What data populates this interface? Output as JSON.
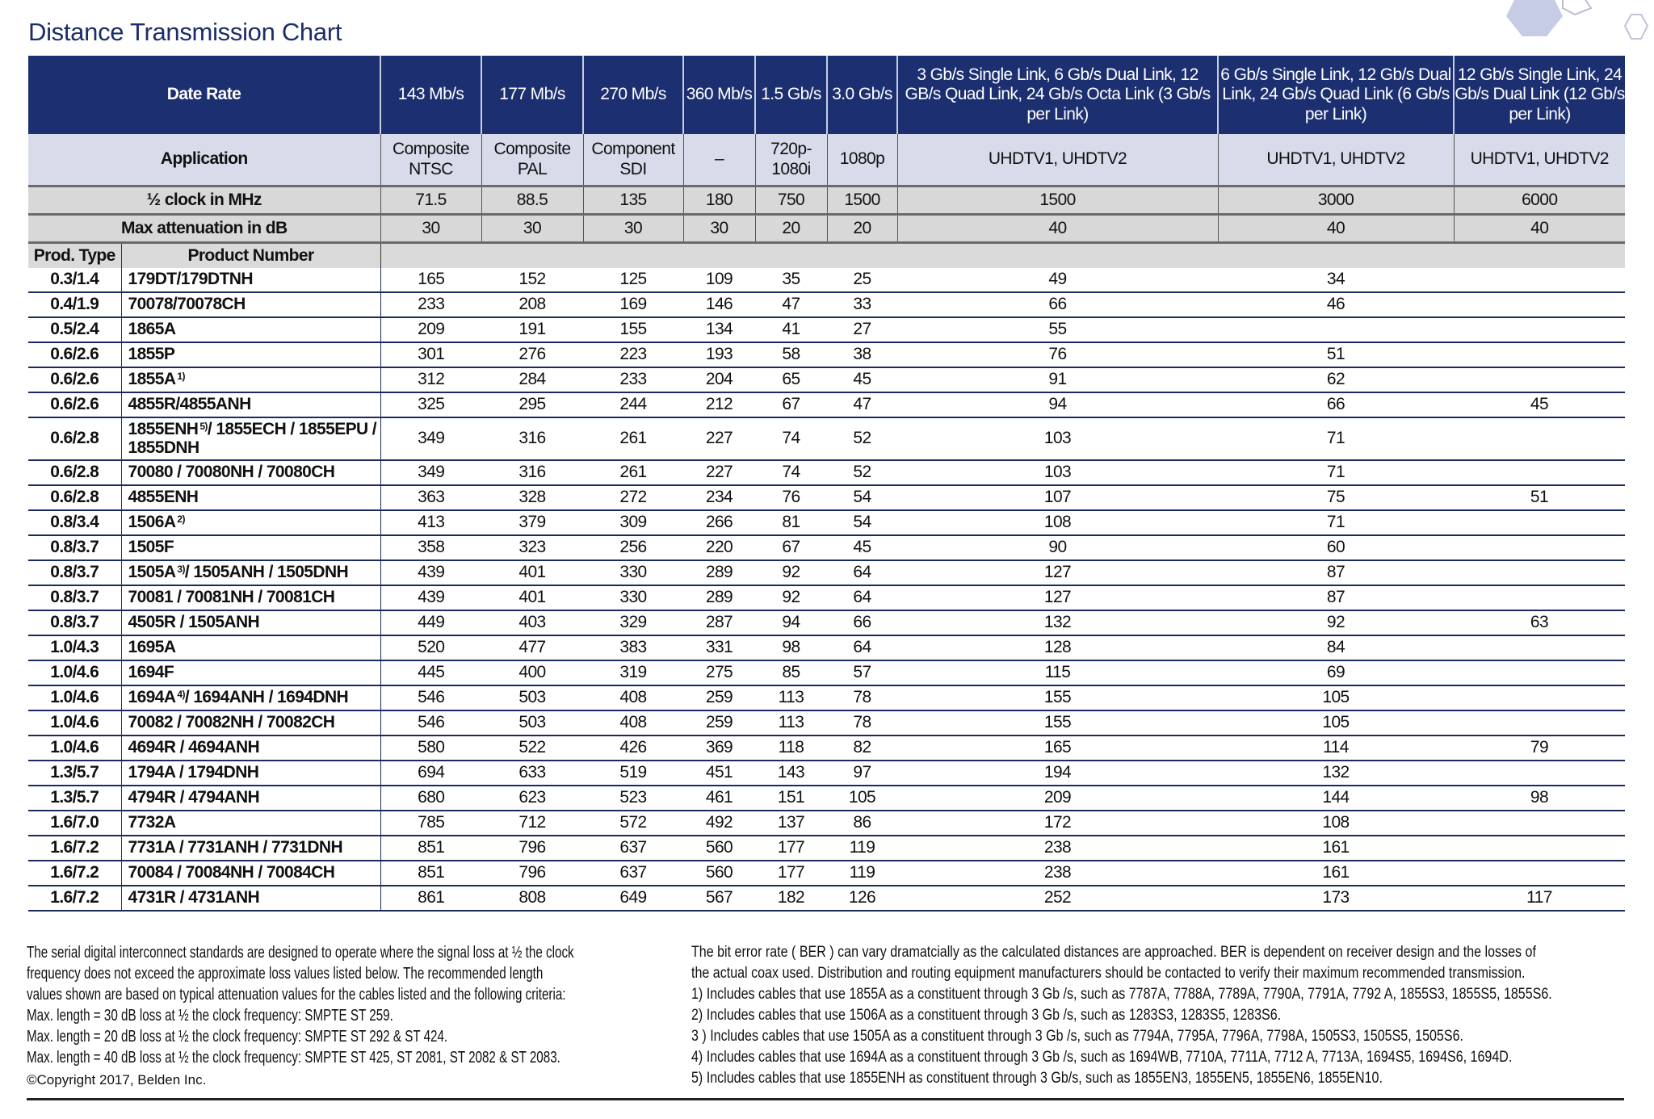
{
  "title": "Distance Transmission Chart",
  "colors": {
    "header_bg": "#1c2f70",
    "application_bg": "#d7dbea",
    "gray_rows_bg": "#d8d8d8",
    "row_rule": "#1b2a5e",
    "title": "#1b2c6b"
  },
  "header": {
    "date_rate_label": "Date Rate",
    "rates": [
      "143 Mb/s",
      "177 Mb/s",
      "270 Mb/s",
      "360 Mb/s",
      "1.5 Gb/s",
      "3.0 Gb/s",
      "3 Gb/s Single Link, 6 Gb/s Dual Link, 12 GB/s Quad Link, 24 Gb/s Octa Link (3 Gb/s per Link)",
      "6 Gb/s Single Link, 12 Gb/s Dual Link, 24 Gb/s Quad Link (6 Gb/s per Link)",
      "12 Gb/s Single Link, 24 Gb/s Dual Link (12 Gb/s per Link)"
    ],
    "application_label": "Application",
    "applications": [
      "Composite NTSC",
      "Composite PAL",
      "Component SDI",
      "–",
      "720p-1080i",
      "1080p",
      "UHDTV1, UHDTV2",
      "UHDTV1, UHDTV2",
      "UHDTV1, UHDTV2"
    ],
    "clock_label": "½ clock in MHz",
    "clocks": [
      "71.5",
      "88.5",
      "135",
      "180",
      "750",
      "1500",
      "1500",
      "3000",
      "6000"
    ],
    "attenuation_label": "Max attenuation in dB",
    "attenuations": [
      "30",
      "30",
      "30",
      "30",
      "20",
      "20",
      "40",
      "40",
      "40"
    ],
    "prod_type_label": "Prod. Type",
    "product_number_label": "Product Number"
  },
  "rows": [
    {
      "type": "0.3/1.4",
      "product": [
        "179DT/179DTNH"
      ],
      "values": [
        "165",
        "152",
        "125",
        "109",
        "35",
        "25",
        "49",
        "34",
        ""
      ]
    },
    {
      "type": "0.4/1.9",
      "product": [
        "70078/70078CH"
      ],
      "values": [
        "233",
        "208",
        "169",
        "146",
        "47",
        "33",
        "66",
        "46",
        ""
      ]
    },
    {
      "type": "0.5/2.4",
      "product": [
        "1865A"
      ],
      "values": [
        "209",
        "191",
        "155",
        "134",
        "41",
        "27",
        "55",
        "",
        ""
      ]
    },
    {
      "type": "0.6/2.6",
      "product": [
        "1855P"
      ],
      "values": [
        "301",
        "276",
        "223",
        "193",
        "58",
        "38",
        "76",
        "51",
        ""
      ]
    },
    {
      "type": "0.6/2.6",
      "product": [
        "1855A",
        "1)",
        ""
      ],
      "values": [
        "312",
        "284",
        "233",
        "204",
        "65",
        "45",
        "91",
        "62",
        ""
      ]
    },
    {
      "type": "0.6/2.6",
      "product": [
        "4855R/4855ANH"
      ],
      "values": [
        "325",
        "295",
        "244",
        "212",
        "67",
        "47",
        "94",
        "66",
        "45"
      ]
    },
    {
      "type": "0.6/2.8",
      "product": [
        "1855ENH",
        "5)",
        "/ 1855ECH / 1855EPU / 1855DNH"
      ],
      "tall": true,
      "values": [
        "349",
        "316",
        "261",
        "227",
        "74",
        "52",
        "103",
        "71",
        ""
      ]
    },
    {
      "type": "0.6/2.8",
      "product": [
        "70080 / 70080NH / 70080CH"
      ],
      "values": [
        "349",
        "316",
        "261",
        "227",
        "74",
        "52",
        "103",
        "71",
        ""
      ]
    },
    {
      "type": "0.6/2.8",
      "product": [
        "4855ENH"
      ],
      "values": [
        "363",
        "328",
        "272",
        "234",
        "76",
        "54",
        "107",
        "75",
        "51"
      ]
    },
    {
      "type": "0.8/3.4",
      "product": [
        "1506A",
        "2)",
        ""
      ],
      "values": [
        "413",
        "379",
        "309",
        "266",
        "81",
        "54",
        "108",
        "71",
        ""
      ]
    },
    {
      "type": "0.8/3.7",
      "product": [
        "1505F"
      ],
      "values": [
        "358",
        "323",
        "256",
        "220",
        "67",
        "45",
        "90",
        "60",
        ""
      ]
    },
    {
      "type": "0.8/3.7",
      "product": [
        "1505A",
        "3)",
        "/ 1505ANH / 1505DNH"
      ],
      "values": [
        "439",
        "401",
        "330",
        "289",
        "92",
        "64",
        "127",
        "87",
        ""
      ]
    },
    {
      "type": "0.8/3.7",
      "product": [
        "70081 / 70081NH / 70081CH"
      ],
      "values": [
        "439",
        "401",
        "330",
        "289",
        "92",
        "64",
        "127",
        "87",
        ""
      ]
    },
    {
      "type": "0.8/3.7",
      "product": [
        "4505R / 1505ANH"
      ],
      "values": [
        "449",
        "403",
        "329",
        "287",
        "94",
        "66",
        "132",
        "92",
        "63"
      ]
    },
    {
      "type": "1.0/4.3",
      "product": [
        "1695A"
      ],
      "values": [
        "520",
        "477",
        "383",
        "331",
        "98",
        "64",
        "128",
        "84",
        ""
      ]
    },
    {
      "type": "1.0/4.6",
      "product": [
        "1694F"
      ],
      "values": [
        "445",
        "400",
        "319",
        "275",
        "85",
        "57",
        "115",
        "69",
        ""
      ]
    },
    {
      "type": "1.0/4.6",
      "product": [
        "1694A",
        "4)",
        "/ 1694ANH / 1694DNH"
      ],
      "values": [
        "546",
        "503",
        "408",
        "259",
        "113",
        "78",
        "155",
        "105",
        ""
      ]
    },
    {
      "type": "1.0/4.6",
      "product": [
        "70082 / 70082NH / 70082CH"
      ],
      "values": [
        "546",
        "503",
        "408",
        "259",
        "113",
        "78",
        "155",
        "105",
        ""
      ]
    },
    {
      "type": "1.0/4.6",
      "product": [
        "4694R / 4694ANH"
      ],
      "values": [
        "580",
        "522",
        "426",
        "369",
        "118",
        "82",
        "165",
        "114",
        "79"
      ]
    },
    {
      "type": "1.3/5.7",
      "product": [
        "1794A / 1794DNH"
      ],
      "values": [
        "694",
        "633",
        "519",
        "451",
        "143",
        "97",
        "194",
        "132",
        ""
      ]
    },
    {
      "type": "1.3/5.7",
      "product": [
        "4794R / 4794ANH"
      ],
      "values": [
        "680",
        "623",
        "523",
        "461",
        "151",
        "105",
        "209",
        "144",
        "98"
      ]
    },
    {
      "type": "1.6/7.0",
      "product": [
        "7732A"
      ],
      "values": [
        "785",
        "712",
        "572",
        "492",
        "137",
        "86",
        "172",
        "108",
        ""
      ]
    },
    {
      "type": "1.6/7.2",
      "product": [
        "7731A / 7731ANH / 7731DNH"
      ],
      "values": [
        "851",
        "796",
        "637",
        "560",
        "177",
        "119",
        "238",
        "161",
        ""
      ]
    },
    {
      "type": "1.6/7.2",
      "product": [
        "70084 / 70084NH / 70084CH"
      ],
      "values": [
        "851",
        "796",
        "637",
        "560",
        "177",
        "119",
        "238",
        "161",
        ""
      ]
    },
    {
      "type": "1.6/7.2",
      "product": [
        "4731R / 4731ANH"
      ],
      "values": [
        "861",
        "808",
        "649",
        "567",
        "182",
        "126",
        "252",
        "173",
        "117"
      ]
    }
  ],
  "footer": {
    "left_lines": [
      "The serial digital interconnect standards are designed to operate where the signal loss at ½ the clock",
      "frequency does not exceed the approximate loss values listed below. The recommended length",
      "values shown are based on typical attenuation values for the cables listed and the following criteria:",
      "Max. length = 30 dB loss at ½ the clock frequency: SMPTE ST 259.",
      "Max. length = 20 dB loss at ½ the clock frequency: SMPTE ST 292 & ST 424.",
      "Max. length = 40 dB loss at ½ the clock frequency: SMPTE ST 425, ST 2081, ST 2082 & ST 2083."
    ],
    "copyright": "©Copyright 2017, Belden Inc.",
    "right_lines": [
      "The bit error rate ( BER ) can vary dramatcially as the calculated distances are approached. BER is dependent on receiver design and the losses of",
      "the actual coax used. Distribution and routing equipment manufacturers should be contacted to verify their maximum recommended transmission.",
      "1) Includes cables that use 1855A as a constituent through 3 Gb /s, such as 7787A, 7788A, 7789A, 7790A, 7791A, 7792 A, 1855S3, 1855S5, 1855S6.",
      "2) Includes cables that use 1506A as a constituent through 3 Gb /s, such as 1283S3, 1283S5, 1283S6.",
      "3 ) Includes cables that use 1505A as a constituent through 3 Gb /s, such as 7794A, 7795A, 7796A, 7798A, 1505S3, 1505S5, 1505S6.",
      "4) Includes cables that use 1694A as a constituent through 3 Gb /s, such as 1694WB, 7710A, 7711A, 7712 A, 7713A, 1694S5, 1694S6, 1694D.",
      "5) Includes cables that use 1855ENH as constituent through 3 Gb/s, such as 1855EN3, 1855EN5, 1855EN6, 1855EN10."
    ]
  }
}
